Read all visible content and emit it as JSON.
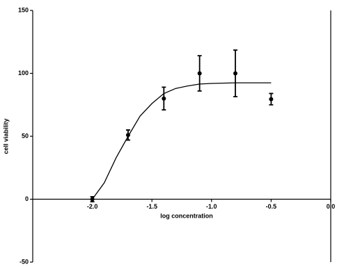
{
  "chart_data": {
    "type": "scatter",
    "xlabel": "log concentration",
    "ylabel": "cell viability",
    "x": [
      -2.0,
      -1.7,
      -1.4,
      -1.1,
      -0.8,
      -0.5
    ],
    "values": [
      0,
      51,
      80,
      100,
      100,
      79.5
    ],
    "errors": [
      2,
      4,
      9,
      14,
      18.5,
      4.5
    ],
    "color": "#000000",
    "fit": {
      "x": [
        -2.0,
        -1.9,
        -1.8,
        -1.7,
        -1.6,
        -1.5,
        -1.4,
        -1.3,
        -1.2,
        -1.1,
        -1.0,
        -0.8,
        -0.5
      ],
      "values": [
        0,
        13,
        33,
        50,
        66,
        76,
        84,
        88,
        90,
        91.5,
        92,
        92.5,
        92.5
      ]
    },
    "xlim": [
      -2.5,
      0
    ],
    "ylim": [
      -50,
      150
    ],
    "xticks": [
      {
        "value": -2,
        "label": "-2.0"
      },
      {
        "value": -1.5,
        "label": "-1.5"
      },
      {
        "value": -1,
        "label": "-1.0"
      },
      {
        "value": -0.5,
        "label": "-0.5"
      },
      {
        "value": 0,
        "label": "0.0"
      }
    ],
    "yticks": [
      -50,
      0,
      50,
      100,
      150
    ]
  }
}
